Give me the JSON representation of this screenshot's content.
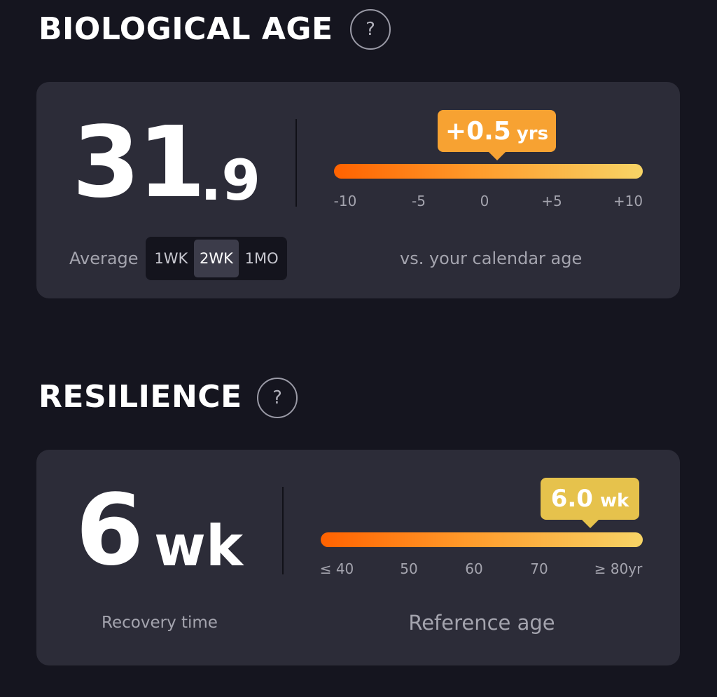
{
  "biological_age": {
    "title": "BIOLOGICAL AGE",
    "help": "?",
    "value_main": "31",
    "value_decimal": ".9",
    "badge": {
      "value": "+0.5",
      "unit": "yrs"
    },
    "scale_ticks": [
      "-10",
      "-5",
      "0",
      "+5",
      "+10"
    ],
    "average_label": "Average",
    "periods": [
      "1WK",
      "2WK",
      "1MO"
    ],
    "comparison_label": "vs. your calendar age"
  },
  "resilience": {
    "title": "RESILIENCE",
    "help": "?",
    "value_main": "6",
    "value_unit": "wk",
    "badge": {
      "value": "6.0",
      "unit": "wk"
    },
    "scale_ticks": [
      "≤ 40",
      "50",
      "60",
      "70",
      "≥ 80yr"
    ],
    "value_label": "Recovery time",
    "scale_label": "Reference age"
  }
}
